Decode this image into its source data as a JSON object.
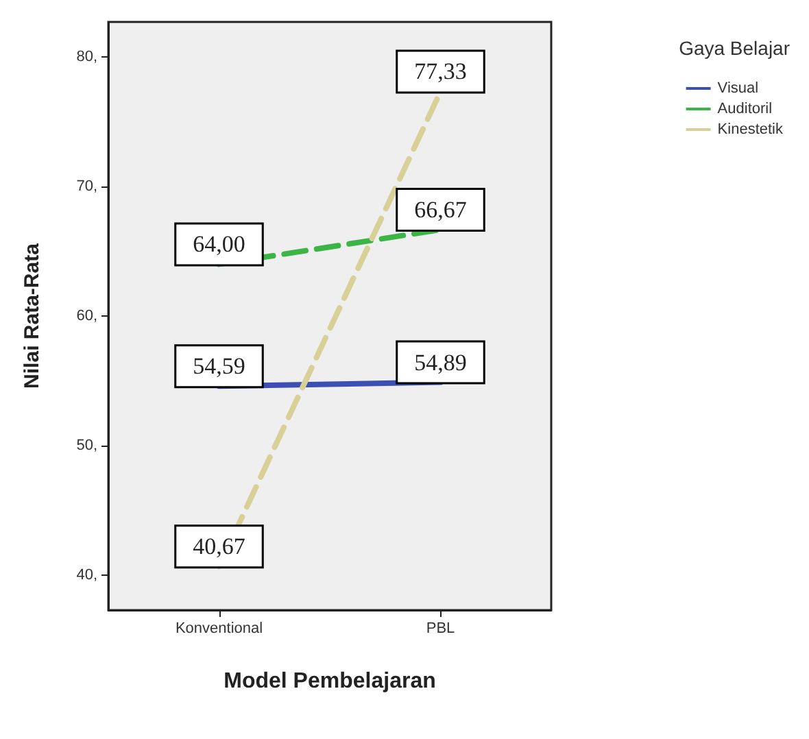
{
  "chart_data": {
    "type": "line",
    "xlabel": "Model Pembelajaran",
    "ylabel": "Nilai Rata-Rata",
    "legend_title": "Gaya Belajar",
    "legend": "top right",
    "grid": false,
    "marker": "none",
    "categories": [
      "Konventional",
      "PBL"
    ],
    "ylim": [
      37.3,
      82.7
    ],
    "yticks": [
      {
        "value": 40,
        "label": "40,"
      },
      {
        "value": 50,
        "label": "50,"
      },
      {
        "value": 60,
        "label": "60,"
      },
      {
        "value": 70,
        "label": "70,"
      },
      {
        "value": 80,
        "label": "80,"
      }
    ],
    "series": [
      {
        "name": "Visual",
        "color": "#3c50b4",
        "line_style": "solid",
        "values": [
          54.59,
          54.89
        ],
        "value_labels": [
          "54,59",
          "54,89"
        ]
      },
      {
        "name": "Auditoril",
        "color": "#3cb446",
        "line_style": "dashed",
        "values": [
          64.0,
          66.67
        ],
        "value_labels": [
          "64,00",
          "66,67"
        ]
      },
      {
        "name": "Kinestetik",
        "color": "#d8d096",
        "line_style": "dashed",
        "values": [
          40.67,
          77.33
        ],
        "value_labels": [
          "40,67",
          "77,33"
        ]
      }
    ]
  }
}
